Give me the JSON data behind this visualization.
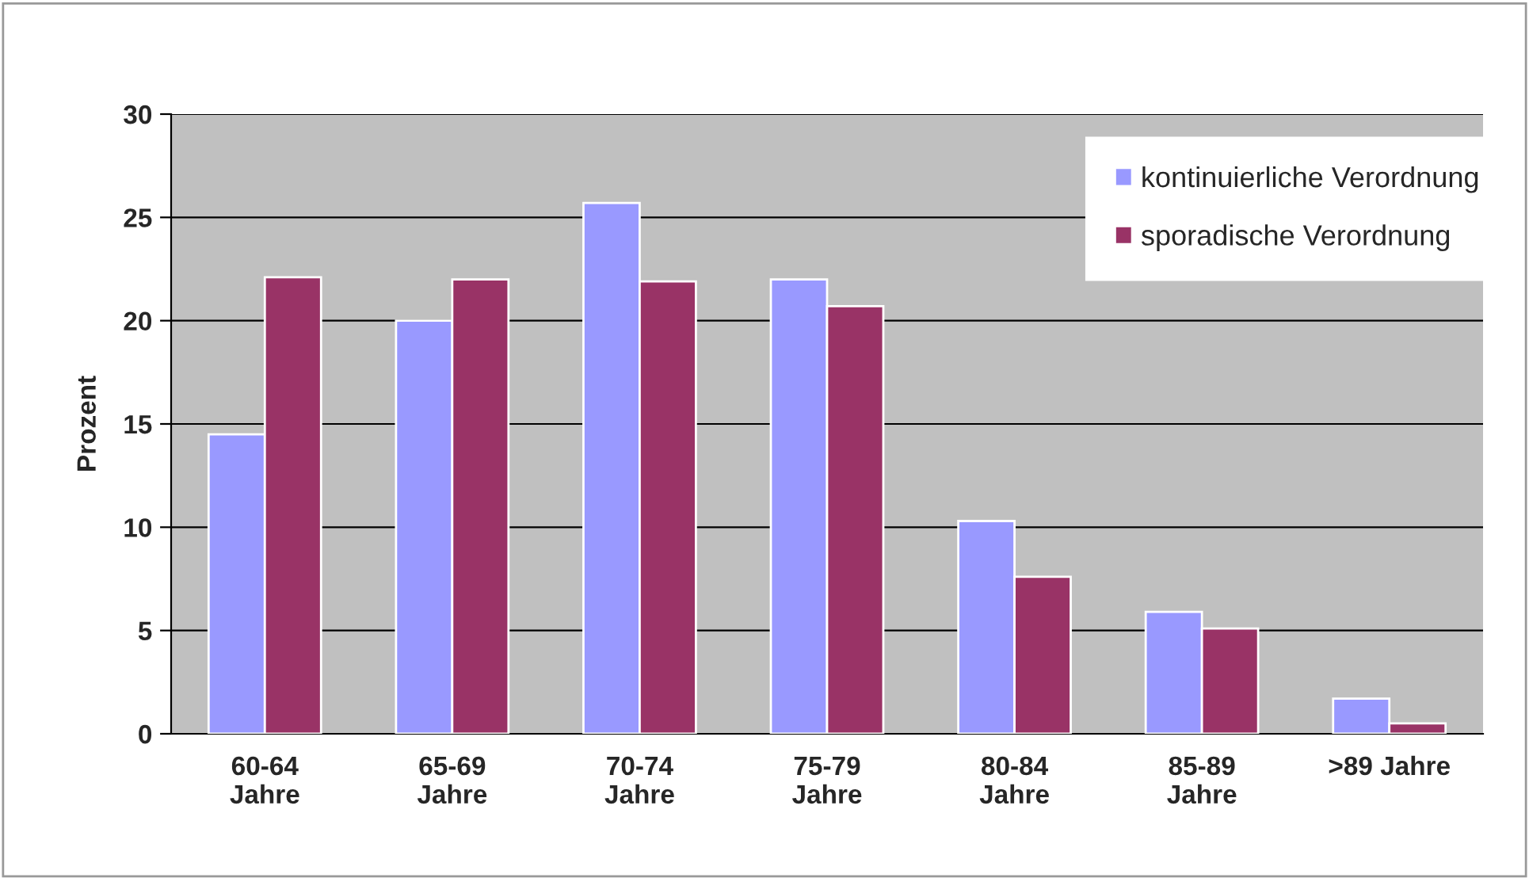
{
  "chart_data": {
    "type": "bar",
    "ylabel": "Prozent",
    "categories": [
      "60-64\nJahre",
      "65-69\nJahre",
      "70-74\nJahre",
      "75-79\nJahre",
      "80-84\nJahre",
      "85-89\nJahre",
      ">89 Jahre"
    ],
    "series": [
      {
        "name": "kontinuierliche Verordnung",
        "color": "#9999ff",
        "values": [
          14.5,
          20.0,
          25.7,
          22.0,
          10.3,
          5.9,
          1.7
        ]
      },
      {
        "name": "sporadische Verordnung",
        "color": "#993366",
        "values": [
          22.1,
          22.0,
          21.9,
          20.7,
          7.6,
          5.1,
          0.5
        ]
      }
    ],
    "ylim": [
      0,
      30
    ],
    "yticks": [
      0,
      5,
      10,
      15,
      20,
      25,
      30
    ],
    "grid": "y",
    "legend": "top right"
  }
}
